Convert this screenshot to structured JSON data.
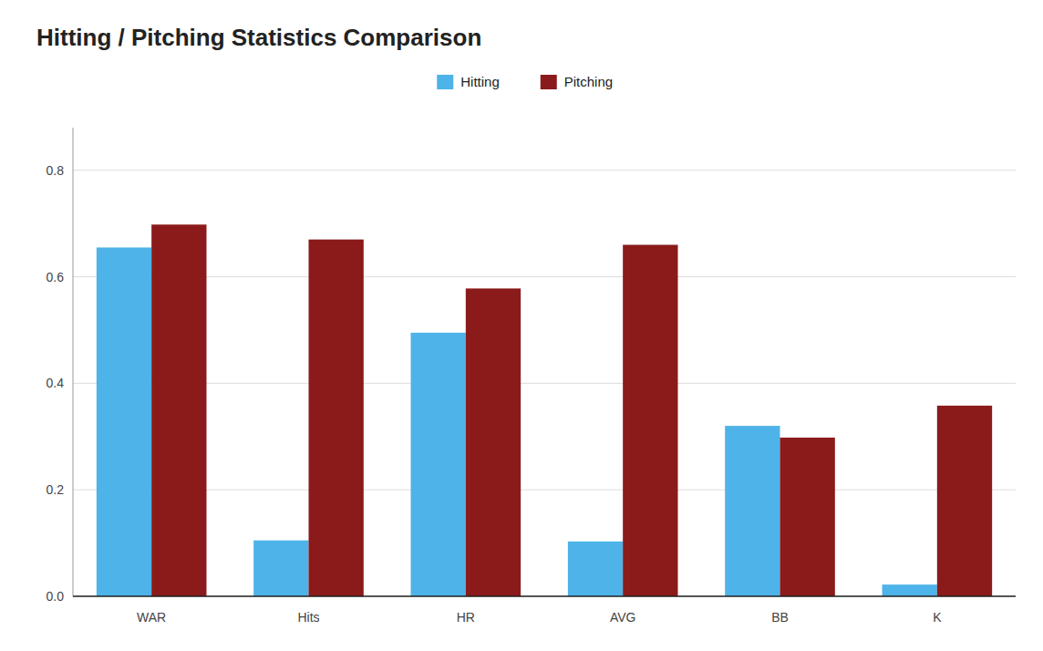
{
  "chart_data": {
    "type": "bar",
    "title": "Hitting / Pitching Statistics Comparison",
    "categories": [
      "WAR",
      "Hits",
      "HR",
      "AVG",
      "BB",
      "K"
    ],
    "series": [
      {
        "name": "Hitting",
        "color": "#4EB3E8",
        "values": [
          0.655,
          0.105,
          0.495,
          0.103,
          0.32,
          0.022
        ]
      },
      {
        "name": "Pitching",
        "color": "#8B1A1A",
        "values": [
          0.698,
          0.67,
          0.578,
          0.66,
          0.298,
          0.358
        ]
      }
    ],
    "ylim": [
      0,
      0.88
    ],
    "yticks": [
      {
        "value": 0.0,
        "label": "0.0"
      },
      0.2,
      0.4,
      0.6,
      0.8
    ],
    "grid": true,
    "legend": "top"
  }
}
